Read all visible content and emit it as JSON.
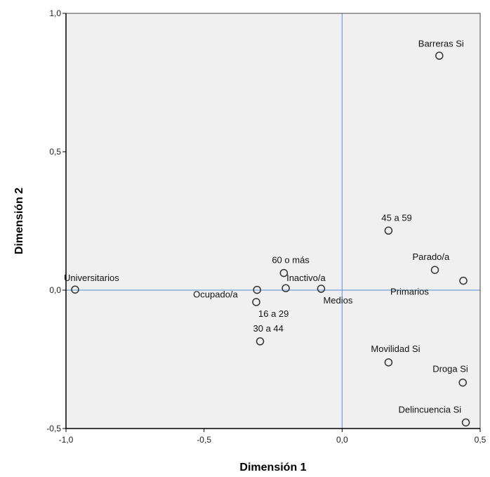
{
  "chart_data": {
    "type": "scatter",
    "xlabel": "Dimensión 1",
    "ylabel": "Dimensión 2",
    "xlim": [
      -1.0,
      0.5
    ],
    "ylim": [
      -0.5,
      1.0
    ],
    "x_ticks": [
      -1.0,
      -0.5,
      0.0,
      0.5
    ],
    "y_ticks": [
      -0.5,
      0.0,
      0.5,
      1.0
    ],
    "x_tick_labels": [
      "-1,0",
      "-0,5",
      "0,0",
      "0,5"
    ],
    "y_tick_labels": [
      "-0,5",
      "0,0",
      "0,5",
      "1,0"
    ],
    "reference_lines": {
      "x": 0.0,
      "y": 0.0
    },
    "points": [
      {
        "label": "Barreras Si",
        "x": 0.352,
        "y": 0.847
      },
      {
        "label": "45 a 59",
        "x": 0.168,
        "y": 0.215
      },
      {
        "label": "Parado/a",
        "x": 0.336,
        "y": 0.073
      },
      {
        "label": "Primarios",
        "x": 0.439,
        "y": 0.034
      },
      {
        "label": "60 o más",
        "x": -0.211,
        "y": 0.062
      },
      {
        "label": "Inactivo/a",
        "x": -0.204,
        "y": 0.007
      },
      {
        "label": "Medios",
        "x": -0.076,
        "y": 0.005
      },
      {
        "label": "Universitarios",
        "x": -0.967,
        "y": 0.002
      },
      {
        "label": "Ocupado/a",
        "x": -0.308,
        "y": 0.001
      },
      {
        "label": "16 a 29",
        "x": -0.311,
        "y": -0.043
      },
      {
        "label": "30 a 44",
        "x": -0.297,
        "y": -0.185
      },
      {
        "label": "Movilidad Si",
        "x": 0.168,
        "y": -0.261
      },
      {
        "label": "Droga Si",
        "x": 0.437,
        "y": -0.334
      },
      {
        "label": "Delincuencia Si",
        "x": 0.448,
        "y": -0.478
      }
    ],
    "colors": {
      "plot_background": "#f0f0f0",
      "reference_line": "#6f9fd6",
      "marker_stroke": "#333333",
      "frame": "#000000"
    }
  }
}
